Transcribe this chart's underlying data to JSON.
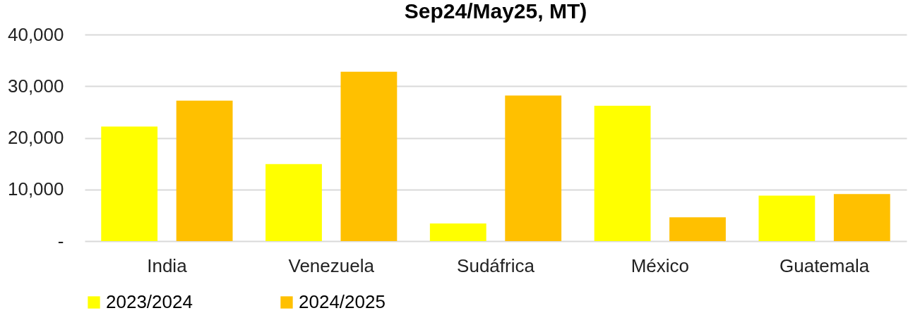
{
  "chart_data": {
    "type": "bar",
    "title": "Sep24/May25, MT)",
    "categories": [
      "India",
      "Venezuela",
      "Sudáfrica",
      "México",
      "Guatemala"
    ],
    "series": [
      {
        "name": "2023/2024",
        "color": "#ffff00",
        "values": [
          22200,
          14900,
          3400,
          26200,
          8800
        ]
      },
      {
        "name": "2024/2025",
        "color": "#ffc000",
        "values": [
          27200,
          32800,
          28200,
          4600,
          9100
        ]
      }
    ],
    "ylim": [
      0,
      40000
    ],
    "yticks": [
      {
        "value": 0,
        "label": "-"
      },
      {
        "value": 10000,
        "label": "10,000"
      },
      {
        "value": 20000,
        "label": "20,000"
      },
      {
        "value": 30000,
        "label": "30,000"
      },
      {
        "value": 40000,
        "label": "40,000"
      }
    ],
    "grid": "y",
    "legend": "bottom"
  }
}
